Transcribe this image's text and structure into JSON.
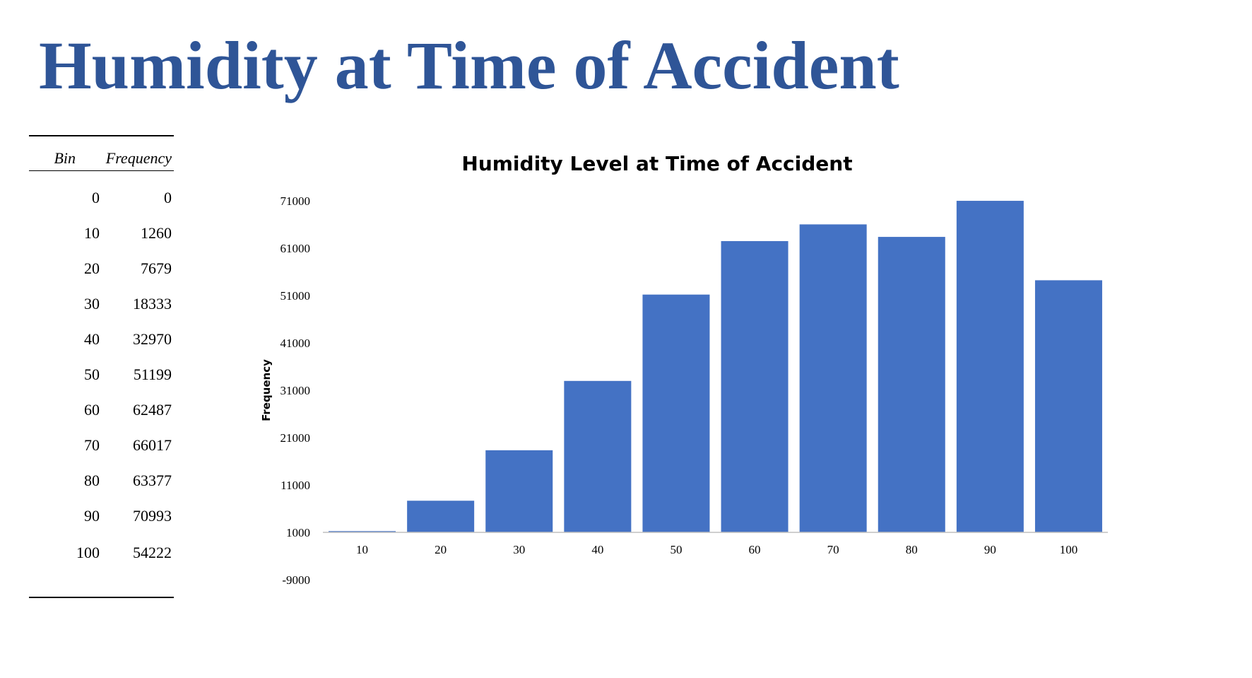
{
  "slide": {
    "title": "Humidity at Time of Accident"
  },
  "table": {
    "headers": [
      "Bin",
      "Frequency"
    ],
    "rows": [
      [
        "0",
        "0"
      ],
      [
        "10",
        "1260"
      ],
      [
        "20",
        "7679"
      ],
      [
        "30",
        "18333"
      ],
      [
        "40",
        "32970"
      ],
      [
        "50",
        "51199"
      ],
      [
        "60",
        "62487"
      ],
      [
        "70",
        "66017"
      ],
      [
        "80",
        "63377"
      ],
      [
        "90",
        "70993"
      ],
      [
        "100",
        "54222"
      ]
    ]
  },
  "chart_data": {
    "type": "bar",
    "title": "Humidity Level at Time of Accident",
    "xlabel": "",
    "ylabel": "Frequency",
    "categories": [
      "10",
      "20",
      "30",
      "40",
      "50",
      "60",
      "70",
      "80",
      "90",
      "100"
    ],
    "values": [
      1260,
      7679,
      18333,
      32970,
      51199,
      62487,
      66017,
      63377,
      70993,
      54222
    ],
    "yticks": [
      -9000,
      1000,
      11000,
      21000,
      31000,
      41000,
      51000,
      61000,
      71000
    ],
    "ylim": [
      -9000,
      71000
    ],
    "bar_color": "#4472c4",
    "grid": false,
    "legend": "none"
  },
  "colors": {
    "title": "#2f5597",
    "bars": "#4472c4"
  }
}
